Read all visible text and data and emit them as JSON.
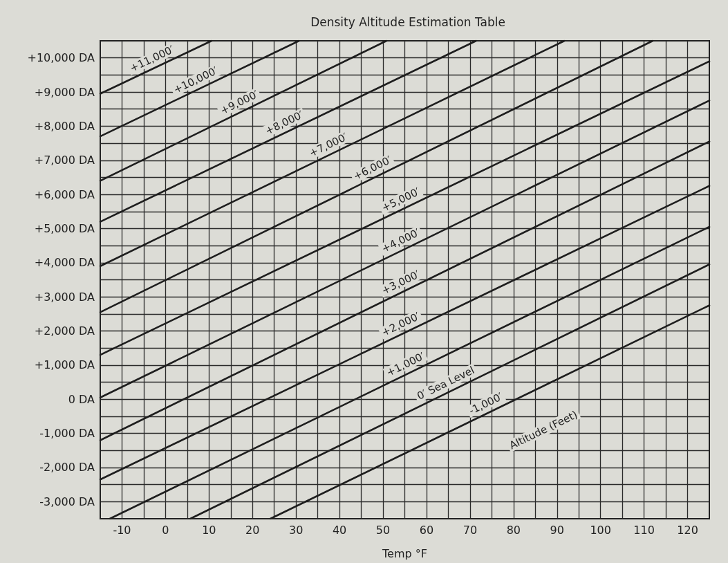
{
  "chart_data": {
    "type": "line",
    "title": "Density Altitude Estimation Table",
    "xlabel": "Temp °F",
    "annotations": [
      "Altitude (Feet)"
    ],
    "xlim": [
      -15,
      125
    ],
    "xticks": [
      {
        "value": -10,
        "label": "-10"
      },
      {
        "value": -5,
        "label": null
      },
      0,
      {
        "value": 5,
        "label": null
      },
      10,
      {
        "value": 15,
        "label": null
      },
      20,
      {
        "value": 25,
        "label": null
      },
      30,
      {
        "value": 35,
        "label": null
      },
      40,
      {
        "value": 45,
        "label": null
      },
      50,
      {
        "value": 55,
        "label": null
      },
      60,
      {
        "value": 65,
        "label": null
      },
      70,
      {
        "value": 75,
        "label": null
      },
      80,
      {
        "value": 85,
        "label": null
      },
      90,
      {
        "value": 95,
        "label": null
      },
      100,
      {
        "value": 105,
        "label": null
      },
      110,
      {
        "value": 115,
        "label": null
      },
      120
    ],
    "ylim": [
      -3500,
      10500
    ],
    "yticks": [
      {
        "value": -3000,
        "label": "-3,000 DA"
      },
      {
        "value": -2500,
        "label": null
      },
      {
        "value": -2000,
        "label": "-2,000 DA"
      },
      {
        "value": -1500,
        "label": null
      },
      {
        "value": -1000,
        "label": "-1,000 DA"
      },
      {
        "value": -500,
        "label": null
      },
      {
        "value": 0,
        "label": "0 DA"
      },
      {
        "value": 500,
        "label": null
      },
      {
        "value": 1000,
        "label": "+1,000 DA"
      },
      {
        "value": 1500,
        "label": null
      },
      {
        "value": 2000,
        "label": "+2,000 DA"
      },
      {
        "value": 2500,
        "label": null
      },
      {
        "value": 3000,
        "label": "+3,000 DA"
      },
      {
        "value": 3500,
        "label": null
      },
      {
        "value": 4000,
        "label": "+4,000 DA"
      },
      {
        "value": 4500,
        "label": null
      },
      {
        "value": 5000,
        "label": "+5,000 DA"
      },
      {
        "value": 5500,
        "label": null
      },
      {
        "value": 6000,
        "label": "+6,000 DA"
      },
      {
        "value": 6500,
        "label": null
      },
      {
        "value": 7000,
        "label": "+7,000 DA"
      },
      {
        "value": 7500,
        "label": null
      },
      {
        "value": 8000,
        "label": "+8,000 DA"
      },
      {
        "value": 8500,
        "label": null
      },
      {
        "value": 9000,
        "label": "+9,000 DA"
      },
      {
        "value": 9500,
        "label": null
      },
      {
        "value": 10000,
        "label": "+10,000 DA"
      }
    ],
    "grid": true,
    "legend": false,
    "marker": "none",
    "line_style": "solid",
    "series": [
      {
        "name": "+11,000′",
        "color": "#1e1e1e",
        "x": [
          -15,
          10.6
        ],
        "values": [
          8950,
          10500
        ]
      },
      {
        "name": "+10,000′",
        "color": "#1e1e1e",
        "x": [
          -15,
          30.7
        ],
        "values": [
          7700,
          10500
        ]
      },
      {
        "name": "+9,000′",
        "color": "#1e1e1e",
        "x": [
          -15,
          50.8
        ],
        "values": [
          6400,
          10500
        ]
      },
      {
        "name": "+8,000′",
        "color": "#1e1e1e",
        "x": [
          -15,
          71.4
        ],
        "values": [
          5200,
          10500
        ]
      },
      {
        "name": "+7,000′",
        "color": "#1e1e1e",
        "x": [
          -15,
          91.7
        ],
        "values": [
          3900,
          10500
        ]
      },
      {
        "name": "+6,000′",
        "color": "#1e1e1e",
        "x": [
          -15,
          112
        ],
        "values": [
          2550,
          10500
        ]
      },
      {
        "name": "+5,000′",
        "color": "#1e1e1e",
        "x": [
          -15,
          125
        ],
        "values": [
          1300,
          9900
        ]
      },
      {
        "name": "+4,000′",
        "color": "#1e1e1e",
        "x": [
          -15,
          125
        ],
        "values": [
          50,
          8750
        ]
      },
      {
        "name": "+3,000′",
        "color": "#1e1e1e",
        "x": [
          -15,
          125
        ],
        "values": [
          -1200,
          7550
        ]
      },
      {
        "name": "+2,000′",
        "color": "#1e1e1e",
        "x": [
          -15,
          125
        ],
        "values": [
          -2350,
          6250
        ]
      },
      {
        "name": "+1,000′",
        "color": "#1e1e1e",
        "x": [
          -12.8,
          125
        ],
        "values": [
          -3500,
          5050
        ]
      },
      {
        "name": "0′ Sea Level",
        "color": "#1e1e1e",
        "x": [
          5.7,
          125
        ],
        "values": [
          -3500,
          3950
        ]
      },
      {
        "name": "-1,000′",
        "color": "#1e1e1e",
        "x": [
          24.1,
          125
        ],
        "values": [
          -3500,
          2750
        ]
      }
    ]
  }
}
